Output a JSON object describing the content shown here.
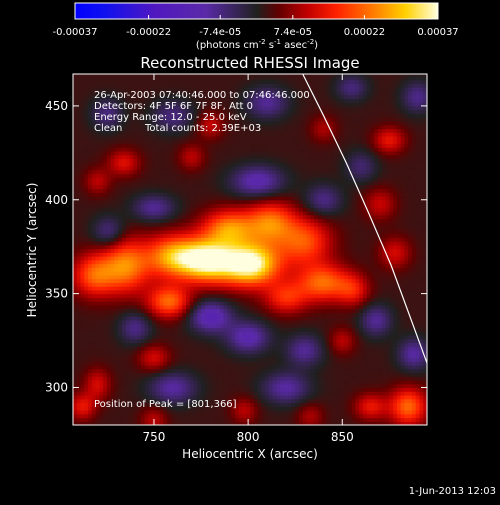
{
  "chart_data": {
    "type": "heatmap",
    "title": "Reconstructed RHESSI Image",
    "xlabel": "Heliocentric X (arcsec)",
    "ylabel": "Heliocentric Y (arcsec)",
    "xlim": [
      707,
      895
    ],
    "ylim": [
      280,
      467
    ],
    "x_ticks": [
      750,
      800,
      850
    ],
    "y_ticks": [
      300,
      350,
      400,
      450
    ],
    "colorbar": {
      "ticks": [
        "-0.00037",
        "-0.00022",
        "-7.4e-05",
        "7.4e-05",
        "0.00022",
        "0.00037"
      ],
      "tick_values": [
        -0.00037,
        -0.00022,
        -7.4e-05,
        7.4e-05,
        0.00022,
        0.00037
      ],
      "range": [
        -0.00037,
        0.00037
      ],
      "units_line": {
        "open": "(photons cm",
        "exp1": "-2",
        "mid1": " s",
        "exp2": "-1",
        "mid2": " asec",
        "exp3": "-2",
        "close": ")"
      }
    },
    "annotations": {
      "time_range": "26-Apr-2003 07:40:46.000 to 07:46:46.000",
      "detectors": "Detectors: 4F 5F 6F 7F 8F, Att 0",
      "energy": "Energy Range: 12.0 - 25.0 keV",
      "clean": "Clean",
      "total_counts": "Total counts: 2.39E+03",
      "peak": "Position of Peak = [801,366]"
    },
    "peak_position": [
      801,
      366
    ],
    "limb_curve": {
      "x": [
        829,
        840,
        852,
        864,
        876,
        887,
        895
      ],
      "y": [
        467,
        445,
        420,
        393,
        365,
        335,
        313
      ]
    },
    "sources": [
      {
        "x": 801,
        "y": 366,
        "amp": 0.00037,
        "sx": 11,
        "sy": 8
      },
      {
        "x": 778,
        "y": 368,
        "amp": 0.00033,
        "sx": 10,
        "sy": 8
      },
      {
        "x": 760,
        "y": 370,
        "amp": 0.00024,
        "sx": 10,
        "sy": 8
      },
      {
        "x": 735,
        "y": 365,
        "amp": 0.00022,
        "sx": 9,
        "sy": 10
      },
      {
        "x": 718,
        "y": 360,
        "amp": 0.00018,
        "sx": 8,
        "sy": 8
      },
      {
        "x": 758,
        "y": 346,
        "amp": 0.0002,
        "sx": 8,
        "sy": 6
      },
      {
        "x": 790,
        "y": 385,
        "amp": 0.00022,
        "sx": 10,
        "sy": 7
      },
      {
        "x": 812,
        "y": 388,
        "amp": 0.0002,
        "sx": 9,
        "sy": 8
      },
      {
        "x": 830,
        "y": 378,
        "amp": 0.00018,
        "sx": 10,
        "sy": 9
      },
      {
        "x": 840,
        "y": 356,
        "amp": 0.0002,
        "sx": 10,
        "sy": 7
      },
      {
        "x": 820,
        "y": 348,
        "amp": 0.00014,
        "sx": 8,
        "sy": 6
      },
      {
        "x": 856,
        "y": 352,
        "amp": 0.00011,
        "sx": 6,
        "sy": 6
      },
      {
        "x": 870,
        "y": 398,
        "amp": 9e-05,
        "sx": 6,
        "sy": 6
      },
      {
        "x": 878,
        "y": 372,
        "amp": 0.0001,
        "sx": 6,
        "sy": 6
      },
      {
        "x": 734,
        "y": 420,
        "amp": 0.00011,
        "sx": 6,
        "sy": 5
      },
      {
        "x": 720,
        "y": 410,
        "amp": 8e-05,
        "sx": 5,
        "sy": 5
      },
      {
        "x": 770,
        "y": 423,
        "amp": 8e-05,
        "sx": 5,
        "sy": 5
      },
      {
        "x": 780,
        "y": 440,
        "amp": 9e-05,
        "sx": 5,
        "sy": 5
      },
      {
        "x": 840,
        "y": 438,
        "amp": 7e-05,
        "sx": 5,
        "sy": 5
      },
      {
        "x": 875,
        "y": 432,
        "amp": 0.00012,
        "sx": 6,
        "sy": 5
      },
      {
        "x": 750,
        "y": 316,
        "amp": 0.0001,
        "sx": 6,
        "sy": 5
      },
      {
        "x": 885,
        "y": 290,
        "amp": 0.0002,
        "sx": 7,
        "sy": 7
      },
      {
        "x": 865,
        "y": 290,
        "amp": 0.00012,
        "sx": 6,
        "sy": 5
      },
      {
        "x": 850,
        "y": 325,
        "amp": 8e-05,
        "sx": 5,
        "sy": 5
      },
      {
        "x": 720,
        "y": 302,
        "amp": 0.0001,
        "sx": 5,
        "sy": 6
      },
      {
        "x": 712,
        "y": 290,
        "amp": 0.00012,
        "sx": 5,
        "sy": 5
      },
      {
        "x": 798,
        "y": 288,
        "amp": 8e-05,
        "sx": 5,
        "sy": 5
      },
      {
        "x": 750,
        "y": 283,
        "amp": 8e-05,
        "sx": 5,
        "sy": 5
      },
      {
        "x": 833,
        "y": 285,
        "amp": 7e-05,
        "sx": 5,
        "sy": 5
      },
      {
        "x": 780,
        "y": 338,
        "amp": -0.00016,
        "sx": 8,
        "sy": 6
      },
      {
        "x": 800,
        "y": 327,
        "amp": -0.00014,
        "sx": 8,
        "sy": 6
      },
      {
        "x": 760,
        "y": 300,
        "amp": -0.00012,
        "sx": 9,
        "sy": 6
      },
      {
        "x": 820,
        "y": 300,
        "amp": -0.00012,
        "sx": 9,
        "sy": 6
      },
      {
        "x": 830,
        "y": 320,
        "amp": -0.00011,
        "sx": 7,
        "sy": 6
      },
      {
        "x": 740,
        "y": 332,
        "amp": -0.0001,
        "sx": 6,
        "sy": 6
      },
      {
        "x": 726,
        "y": 383,
        "amp": -0.0001,
        "sx": 6,
        "sy": 6
      },
      {
        "x": 750,
        "y": 396,
        "amp": -0.00011,
        "sx": 8,
        "sy": 5
      },
      {
        "x": 805,
        "y": 410,
        "amp": -0.00014,
        "sx": 10,
        "sy": 6
      },
      {
        "x": 840,
        "y": 400,
        "amp": -0.0001,
        "sx": 7,
        "sy": 6
      },
      {
        "x": 760,
        "y": 445,
        "amp": -9e-05,
        "sx": 8,
        "sy": 6
      },
      {
        "x": 810,
        "y": 452,
        "amp": -0.00011,
        "sx": 8,
        "sy": 6
      },
      {
        "x": 725,
        "y": 446,
        "amp": -9e-05,
        "sx": 6,
        "sy": 6
      },
      {
        "x": 860,
        "y": 418,
        "amp": -8e-05,
        "sx": 6,
        "sy": 6
      },
      {
        "x": 868,
        "y": 336,
        "amp": -0.00011,
        "sx": 6,
        "sy": 6
      },
      {
        "x": 888,
        "y": 318,
        "amp": -0.00012,
        "sx": 6,
        "sy": 6
      },
      {
        "x": 855,
        "y": 460,
        "amp": -9e-05,
        "sx": 6,
        "sy": 5
      },
      {
        "x": 890,
        "y": 455,
        "amp": -0.0001,
        "sx": 6,
        "sy": 6
      }
    ]
  },
  "footer": {
    "date": "1-Jun-2013 12:03"
  }
}
